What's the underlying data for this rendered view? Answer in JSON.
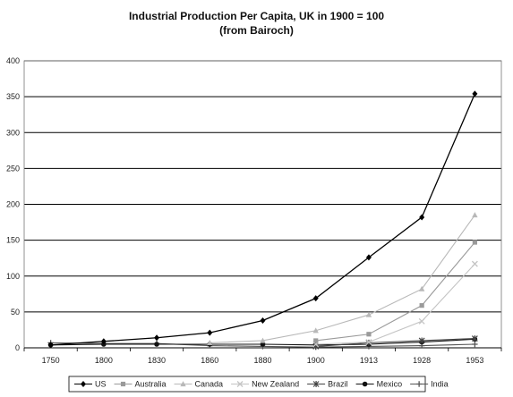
{
  "chart_data": {
    "type": "line",
    "title": "Industrial Production Per Capita, UK in 1900 = 100",
    "subtitle": "(from Bairoch)",
    "xlabel": "",
    "ylabel": "",
    "categories": [
      "1750",
      "1800",
      "1830",
      "1860",
      "1880",
      "1900",
      "1913",
      "1928",
      "1953"
    ],
    "ylim": [
      0,
      400
    ],
    "yticks": [
      0,
      50,
      100,
      150,
      200,
      250,
      300,
      350,
      400
    ],
    "grid": "horizontal major lines",
    "legend_position": "bottom",
    "series": [
      {
        "name": "US",
        "color": "#000000",
        "marker": "diamond",
        "values": [
          4,
          9,
          14,
          21,
          38,
          69,
          126,
          182,
          354
        ]
      },
      {
        "name": "Australia",
        "color": "#9a9a9a",
        "marker": "square",
        "values": [
          null,
          null,
          null,
          null,
          null,
          10,
          19,
          59,
          147
        ]
      },
      {
        "name": "Canada",
        "color": "#b8b8b8",
        "marker": "triangle",
        "values": [
          null,
          null,
          null,
          7,
          10,
          24,
          46,
          82,
          185
        ]
      },
      {
        "name": "New Zealand",
        "color": "#c4c4c4",
        "marker": "x",
        "values": [
          null,
          null,
          null,
          null,
          null,
          5,
          8,
          37,
          117
        ]
      },
      {
        "name": "Brazil",
        "color": "#444444",
        "marker": "star",
        "values": [
          null,
          null,
          null,
          null,
          null,
          2,
          7,
          10,
          13
        ]
      },
      {
        "name": "Mexico",
        "color": "#111111",
        "marker": "circle",
        "values": [
          4,
          5,
          5,
          5,
          5,
          4,
          5,
          8,
          12
        ]
      },
      {
        "name": "India",
        "color": "#555555",
        "marker": "plus",
        "values": [
          7,
          6,
          6,
          3,
          2,
          1,
          2,
          3,
          5
        ]
      }
    ]
  }
}
